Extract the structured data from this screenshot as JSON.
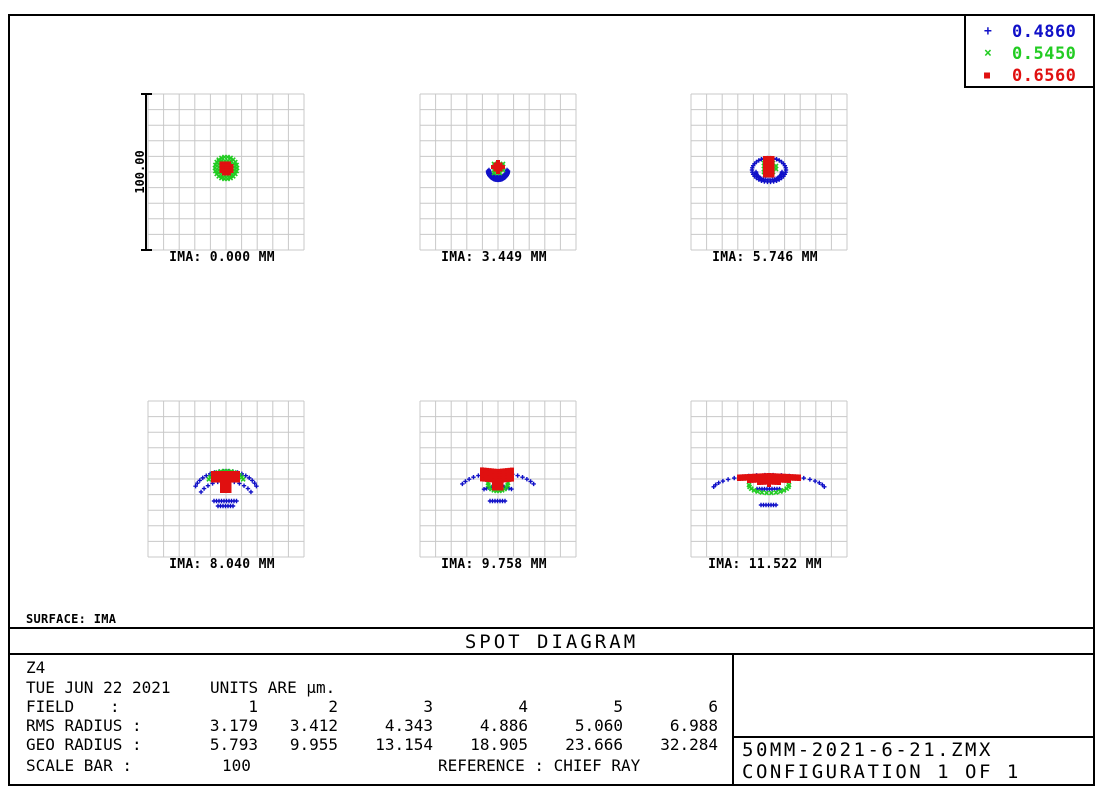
{
  "legend": [
    {
      "marker": "+",
      "label": "0.4860",
      "color": "#1010c8"
    },
    {
      "marker": "×",
      "label": "0.5450",
      "color": "#22cc22"
    },
    {
      "marker": "■",
      "label": "0.6560",
      "color": "#e01010"
    }
  ],
  "scale_label": "100.00",
  "surface_label": "SURFACE: IMA",
  "title": "SPOT DIAGRAM",
  "info": {
    "line1": "Z4",
    "date": "TUE JUN 22 2021",
    "units": "UNITS ARE µm.",
    "field_header": "FIELD",
    "colon": ":",
    "field_numbers": [
      "1",
      "2",
      "3",
      "4",
      "5",
      "6"
    ],
    "rms_label": "RMS RADIUS :",
    "rms_values": [
      "3.179",
      "3.412",
      "4.343",
      "4.886",
      "5.060",
      "6.988"
    ],
    "geo_label": "GEO RADIUS :",
    "geo_values": [
      "5.793",
      "9.955",
      "13.154",
      "18.905",
      "23.666",
      "32.284"
    ],
    "scale_bar_label": "SCALE BAR  :",
    "scale_bar_value": "100",
    "reference": "REFERENCE   : CHIEF RAY"
  },
  "file": {
    "name": "50MM-2021-6-21.ZMX",
    "config": "CONFIGURATION 1 OF 1"
  },
  "chart_data": {
    "type": "scatter",
    "title": "SPOT DIAGRAM",
    "scale_bar_um": 100,
    "grid_divisions": 10,
    "wavelengths": [
      "0.4860",
      "0.5450",
      "0.6560"
    ],
    "fields": [
      {
        "label": "IMA: 0.000 MM",
        "rms_radius": 3.179,
        "geo_radius": 5.793
      },
      {
        "label": "IMA: 3.449 MM",
        "rms_radius": 3.412,
        "geo_radius": 9.955
      },
      {
        "label": "IMA: 5.746 MM",
        "rms_radius": 4.343,
        "geo_radius": 13.154
      },
      {
        "label": "IMA: 8.040 MM",
        "rms_radius": 4.886,
        "geo_radius": 18.905
      },
      {
        "label": "IMA: 9.758 MM",
        "rms_radius": 5.06,
        "geo_radius": 23.666
      },
      {
        "label": "IMA: 11.522 MM",
        "rms_radius": 6.988,
        "geo_radius": 32.284
      }
    ],
    "grid": true,
    "legend_position": "top-right"
  }
}
